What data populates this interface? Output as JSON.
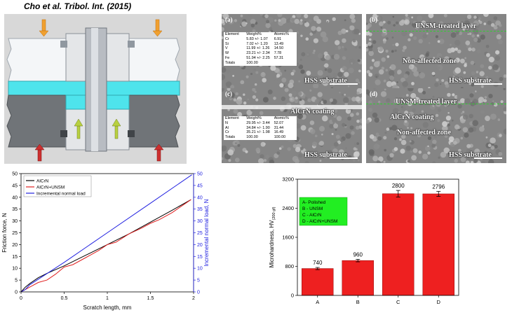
{
  "title": "Cho  et al. Tribol. Int. (2015)",
  "sem_panels": [
    {
      "id": "a",
      "letter": "(a)",
      "labels": [
        "HSS substrate"
      ],
      "table": {
        "header": [
          "Element",
          "Weight%",
          "Atomic%"
        ],
        "rows": [
          [
            "Cr",
            "5.83 +/- 1.07",
            "6.91"
          ],
          [
            "Si",
            "7.02 +/- 1.20",
            "13.49"
          ],
          [
            "V",
            "11.99 +/- 1.26",
            "14.50"
          ],
          [
            "W",
            "23.21 +/- 2.34",
            "7.78"
          ],
          [
            "Fe",
            "51.94 +/- 2.25",
            "57.31"
          ],
          [
            "Totals",
            "100.00",
            ""
          ]
        ]
      }
    },
    {
      "id": "b",
      "letter": "(b)",
      "labels": [
        "UNSM-treated layer",
        "Non-affected zone",
        "HSS substrate"
      ]
    },
    {
      "id": "c",
      "letter": "(c)",
      "labels": [
        "AlCrN coating",
        "HSS substrate"
      ],
      "table": {
        "header": [
          "Element",
          "Weight%",
          "Atomic%"
        ],
        "rows": [
          [
            "N",
            "29.95 +/- 3.44",
            "52.07"
          ],
          [
            "Al",
            "34.84 +/- 1.90",
            "31.44"
          ],
          [
            "Cr",
            "35.21 +/- 1.98",
            "16.49"
          ],
          [
            "Totals",
            "100.00",
            "100.00"
          ]
        ]
      }
    },
    {
      "id": "d",
      "letter": "(d)",
      "labels": [
        "UNSM-treated layer",
        "AlCrN coating",
        "Non-affected zone",
        "HSS substrate"
      ]
    }
  ],
  "colors": {
    "arrow_orange": "#f0a030",
    "arrow_red": "#cc3030",
    "arrow_green": "#b8d040",
    "cyan": "#4ee4ec",
    "friction_black": "#000000",
    "friction_red": "#e02020",
    "normal_load_blue": "#2020e0",
    "bar_red": "#ee2020",
    "legend_green": "#22ee22"
  },
  "chart_data": [
    {
      "type": "line",
      "xlabel": "Scratch length, mm",
      "ylabel": "Friction force, N",
      "y2label": "Incremental normal load, N",
      "xlim": [
        0,
        2.0
      ],
      "ylim": [
        0,
        50
      ],
      "y2lim": [
        0,
        50
      ],
      "xticks": [
        "0",
        "0.5",
        "1",
        "1.5",
        "2"
      ],
      "yticks": [
        "0",
        "5",
        "10",
        "15",
        "20",
        "25",
        "30",
        "35",
        "40",
        "45",
        "50"
      ],
      "legend_position": "top-left",
      "series": [
        {
          "name": "AlCrN",
          "color": "#000000",
          "axis": "left",
          "x": [
            0,
            0.05,
            0.1,
            0.2,
            0.3,
            0.5,
            0.75,
            1.0,
            1.25,
            1.5,
            1.75,
            1.97
          ],
          "y": [
            0,
            2,
            3.5,
            6,
            7.8,
            11,
            15.5,
            20,
            24.5,
            29.5,
            34.5,
            39
          ]
        },
        {
          "name": "AlCrN+UNSM",
          "color": "#e02020",
          "axis": "left",
          "x": [
            0,
            0.05,
            0.1,
            0.2,
            0.3,
            0.4,
            0.5,
            0.6,
            0.75,
            0.9,
            1.0,
            1.1,
            1.25,
            1.4,
            1.5,
            1.6,
            1.75,
            1.85,
            1.97
          ],
          "y": [
            0,
            1,
            2,
            4,
            5,
            7.5,
            10.5,
            11.5,
            14.5,
            17.5,
            20,
            21,
            24.5,
            27,
            29,
            30.5,
            33.5,
            36,
            39
          ]
        },
        {
          "name": "Incremental normal load",
          "color": "#2020e0",
          "axis": "right",
          "x": [
            0,
            0.05,
            0.1,
            0.5,
            1.0,
            1.5,
            1.98
          ],
          "y": [
            0,
            1,
            3,
            12.5,
            25,
            37.5,
            49.5
          ]
        }
      ]
    },
    {
      "type": "bar",
      "ylabel": "Microhardness, HV",
      "ylabel_sub": "(200 gf)",
      "ylim": [
        0,
        3200
      ],
      "yticks": [
        "0",
        "800",
        "1600",
        "2400",
        "3200"
      ],
      "categories": [
        "A",
        "B",
        "C",
        "D"
      ],
      "values": [
        740,
        960,
        2800,
        2796
      ],
      "errors": [
        30,
        35,
        90,
        70
      ],
      "value_labels": [
        "740",
        "960",
        "2800",
        "2796"
      ],
      "legend_position": "top-left",
      "legend_lines": [
        "A- Polished",
        "B - UNSM",
        "C - AlCrN",
        "D - AlCrN+UNSM"
      ]
    }
  ]
}
